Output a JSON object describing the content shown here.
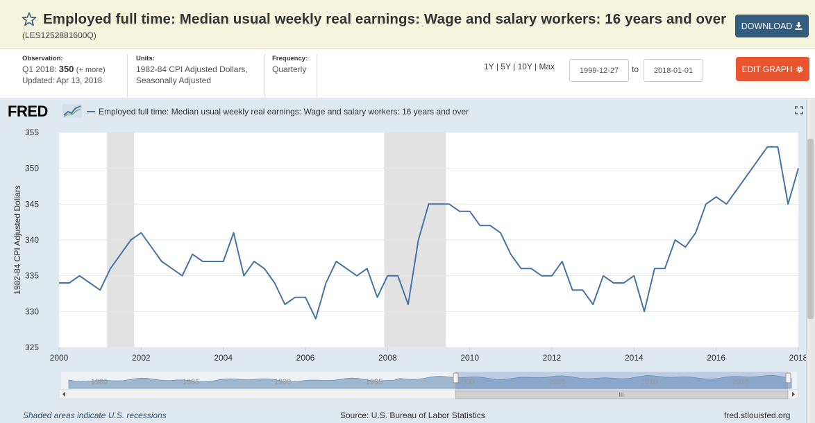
{
  "header": {
    "title": "Employed full time: Median usual weekly real earnings: Wage and salary workers: 16 years and over",
    "series_id": "(LES1252881600Q)",
    "download_label": "DOWNLOAD"
  },
  "meta": {
    "observation_label": "Observation:",
    "observation_period": "Q1 2018:",
    "observation_value": "350",
    "observation_more": "(+ more)",
    "updated": "Updated: Apr 13, 2018",
    "units_label": "Units:",
    "units_line1": "1982-84 CPI Adjusted Dollars,",
    "units_line2": "Seasonally Adjusted",
    "frequency_label": "Frequency:",
    "frequency_value": "Quarterly"
  },
  "controls": {
    "range_1y": "1Y",
    "range_5y": "5Y",
    "range_10y": "10Y",
    "range_max": "Max",
    "separator": "|",
    "start_date": "1999-12-27",
    "to_label": "to",
    "end_date": "2018-01-01",
    "edit_graph_label": "EDIT GRAPH"
  },
  "graph": {
    "logo": "FRED",
    "legend": "Employed full time: Median usual weekly real earnings: Wage and salary workers: 16 years and over",
    "navigator_years": [
      "1980",
      "1985",
      "1990",
      "1995",
      "2000",
      "2005",
      "2010",
      "2015"
    ],
    "navigator_scroll_glyph": "III"
  },
  "footer": {
    "recession_note": "Shaded areas indicate U.S. recessions",
    "source": "Source: U.S. Bureau of Labor Statistics",
    "site": "fred.stlouisfed.org"
  },
  "colors": {
    "line": "#4572a7",
    "recession": "#e2e2e2",
    "background": "#e1e9f0",
    "download_button": "#355c7d",
    "edit_button": "#e8552f",
    "header_band": "#f4f5dc"
  },
  "chart_data": {
    "type": "line",
    "title": "",
    "xlabel": "",
    "ylabel": "1982-84 CPI Adjusted Dollars",
    "xlim": [
      2000,
      2018
    ],
    "ylim": [
      325,
      355
    ],
    "x_ticks": [
      "2000",
      "2002",
      "2004",
      "2006",
      "2008",
      "2010",
      "2012",
      "2014",
      "2016",
      "2018"
    ],
    "y_ticks": [
      "325",
      "330",
      "335",
      "340",
      "345",
      "350",
      "355"
    ],
    "recessions": [
      [
        2001.17,
        2001.83
      ],
      [
        2007.92,
        2009.42
      ]
    ],
    "grid": true,
    "series": [
      {
        "name": "Employed full time: Median usual weekly real earnings: Wage and salary workers: 16 years and over",
        "x": [
          2000.0,
          2000.25,
          2000.5,
          2000.75,
          2001.0,
          2001.25,
          2001.5,
          2001.75,
          2002.0,
          2002.25,
          2002.5,
          2002.75,
          2003.0,
          2003.25,
          2003.5,
          2003.75,
          2004.0,
          2004.25,
          2004.5,
          2004.75,
          2005.0,
          2005.25,
          2005.5,
          2005.75,
          2006.0,
          2006.25,
          2006.5,
          2006.75,
          2007.0,
          2007.25,
          2007.5,
          2007.75,
          2008.0,
          2008.25,
          2008.5,
          2008.75,
          2009.0,
          2009.25,
          2009.5,
          2009.75,
          2010.0,
          2010.25,
          2010.5,
          2010.75,
          2011.0,
          2011.25,
          2011.5,
          2011.75,
          2012.0,
          2012.25,
          2012.5,
          2012.75,
          2013.0,
          2013.25,
          2013.5,
          2013.75,
          2014.0,
          2014.25,
          2014.5,
          2014.75,
          2015.0,
          2015.25,
          2015.5,
          2015.75,
          2016.0,
          2016.25,
          2016.5,
          2016.75,
          2017.0,
          2017.25,
          2017.5,
          2017.75,
          2018.0
        ],
        "y": [
          334,
          334,
          335,
          334,
          333,
          336,
          338,
          340,
          341,
          339,
          337,
          336,
          335,
          338,
          337,
          337,
          337,
          341,
          335,
          337,
          336,
          334,
          331,
          332,
          332,
          329,
          334,
          337,
          336,
          335,
          336,
          332,
          335,
          335,
          331,
          340,
          345,
          345,
          345,
          344,
          344,
          342,
          342,
          341,
          338,
          336,
          336,
          335,
          335,
          337,
          333,
          333,
          331,
          335,
          334,
          334,
          335,
          330,
          336,
          336,
          340,
          339,
          341,
          345,
          346,
          345,
          347,
          349,
          351,
          353,
          353,
          345,
          350
        ]
      }
    ]
  }
}
